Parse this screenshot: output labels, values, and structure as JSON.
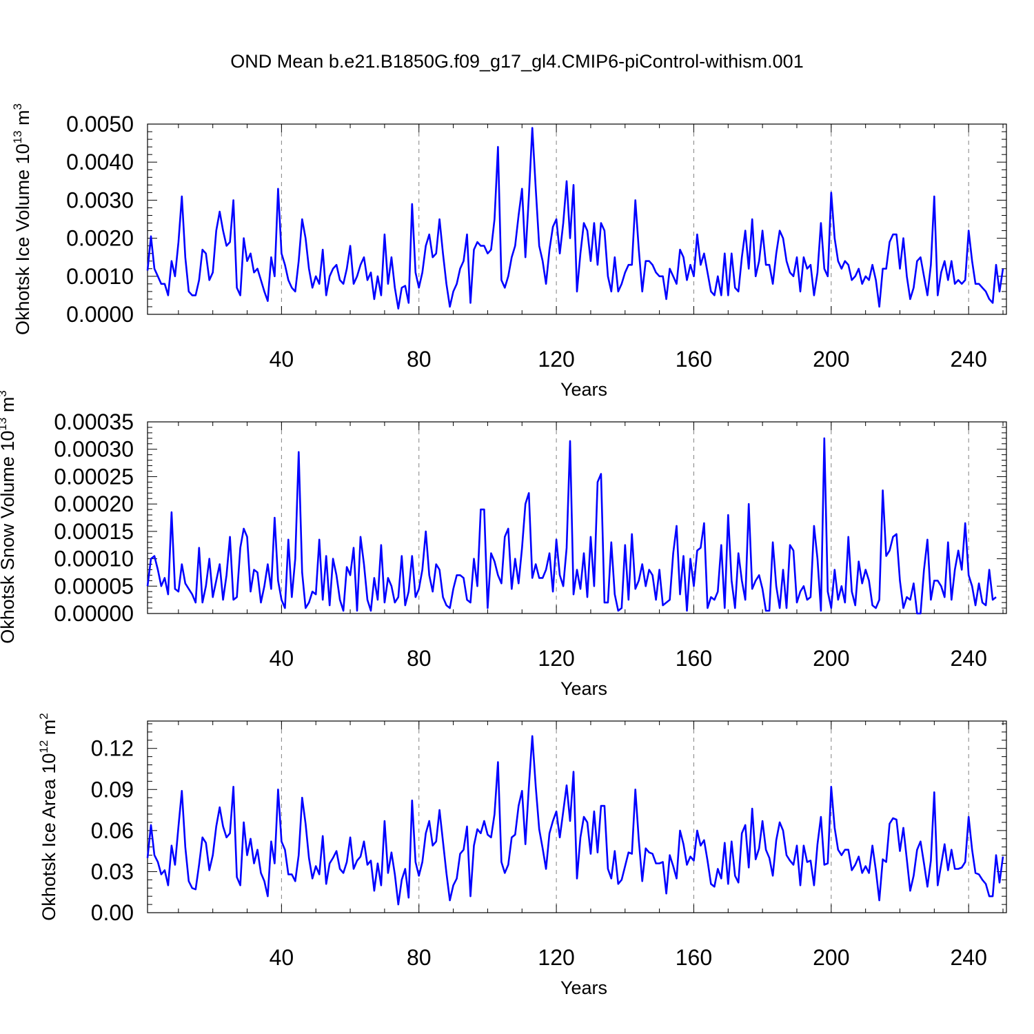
{
  "figure": {
    "title": "OND Mean b.e21.B1850G.f09_g17_gl4.CMIP6-piControl-withism.001",
    "line_color": "#0000ff"
  },
  "chart_data": [
    {
      "type": "line",
      "name": "ice-volume",
      "ylabel_main": "Okhotsk Ice Volume 10",
      "ylabel_exp": "13",
      "ylabel_unit": " m",
      "ylabel_unit_exp": "3",
      "xlabel": "Years",
      "xlim": [
        1,
        251
      ],
      "ylim": [
        0,
        0.005
      ],
      "xticks": [
        40,
        80,
        120,
        160,
        200,
        240
      ],
      "xtick_labels": [
        "40",
        "80",
        "120",
        "160",
        "200",
        "240"
      ],
      "yticks": [
        0,
        0.001,
        0.002,
        0.003,
        0.004,
        0.005
      ],
      "ytick_labels": [
        "0.0000",
        "0.0010",
        "0.0020",
        "0.0030",
        "0.0040",
        "0.0050"
      ],
      "grid": "x-dashed",
      "x_start": 1,
      "values": [
        0.00115,
        0.00205,
        0.0012,
        0.001,
        0.0008,
        0.0008,
        0.0005,
        0.0014,
        0.001,
        0.0019,
        0.0031,
        0.0015,
        0.0006,
        0.0005,
        0.0005,
        0.0009,
        0.0017,
        0.0016,
        0.0009,
        0.0011,
        0.0022,
        0.0027,
        0.0022,
        0.0018,
        0.0019,
        0.003,
        0.0007,
        0.0005,
        0.002,
        0.0014,
        0.0016,
        0.0011,
        0.0012,
        0.0009,
        0.0006,
        0.00035,
        0.0015,
        0.001,
        0.0033,
        0.0016,
        0.0013,
        0.0009,
        0.0007,
        0.0006,
        0.0014,
        0.0025,
        0.002,
        0.0012,
        0.0007,
        0.001,
        0.0008,
        0.0017,
        0.0005,
        0.001,
        0.0012,
        0.0013,
        0.0009,
        0.0008,
        0.0012,
        0.0018,
        0.0008,
        0.001,
        0.0013,
        0.0015,
        0.0009,
        0.0011,
        0.0004,
        0.001,
        0.0005,
        0.0021,
        0.0008,
        0.0015,
        0.0007,
        0.00015,
        0.0007,
        0.00075,
        0.0003,
        0.0029,
        0.0011,
        0.0007,
        0.0011,
        0.0018,
        0.0021,
        0.0015,
        0.0016,
        0.0025,
        0.0016,
        0.0008,
        0.0002,
        0.0006,
        0.0008,
        0.0012,
        0.0014,
        0.0021,
        0.0003,
        0.0017,
        0.0019,
        0.0018,
        0.0018,
        0.0016,
        0.0017,
        0.0025,
        0.0044,
        0.0009,
        0.0007,
        0.001,
        0.0015,
        0.0018,
        0.0026,
        0.0033,
        0.0015,
        0.0031,
        0.0049,
        0.0033,
        0.0018,
        0.0014,
        0.0008,
        0.0017,
        0.0023,
        0.0025,
        0.0016,
        0.0024,
        0.0035,
        0.002,
        0.0034,
        0.0006,
        0.0016,
        0.0024,
        0.0022,
        0.0014,
        0.0024,
        0.0013,
        0.0024,
        0.0022,
        0.001,
        0.0006,
        0.0015,
        0.0006,
        0.0008,
        0.0011,
        0.0013,
        0.0013,
        0.003,
        0.0017,
        0.0006,
        0.0014,
        0.0014,
        0.0013,
        0.0011,
        0.001,
        0.001,
        0.0004,
        0.0012,
        0.001,
        0.0008,
        0.0017,
        0.0015,
        0.0009,
        0.0013,
        0.001,
        0.0021,
        0.0013,
        0.0016,
        0.0011,
        0.0006,
        0.0005,
        0.001,
        0.0005,
        0.0016,
        0.0005,
        0.0016,
        0.0007,
        0.0006,
        0.0015,
        0.0022,
        0.0012,
        0.0025,
        0.001,
        0.0014,
        0.0022,
        0.0013,
        0.0013,
        0.0008,
        0.0016,
        0.0022,
        0.002,
        0.0014,
        0.0011,
        0.001,
        0.0015,
        0.0006,
        0.0015,
        0.0012,
        0.0013,
        0.0005,
        0.0011,
        0.0024,
        0.0012,
        0.001,
        0.0032,
        0.002,
        0.0014,
        0.0012,
        0.0014,
        0.0013,
        0.0009,
        0.001,
        0.0012,
        0.0008,
        0.001,
        0.0009,
        0.0013,
        0.0009,
        0.0002,
        0.0012,
        0.0012,
        0.0019,
        0.0021,
        0.0021,
        0.0012,
        0.002,
        0.001,
        0.0004,
        0.0007,
        0.0014,
        0.0015,
        0.001,
        0.0005,
        0.0013,
        0.0031,
        0.0005,
        0.0011,
        0.0014,
        0.0009,
        0.0014,
        0.0008,
        0.0009,
        0.0008,
        0.0009,
        0.0022,
        0.0014,
        0.0008,
        0.0008,
        0.0007,
        0.0006,
        0.0004,
        0.0003,
        0.0013,
        0.0006,
        0.0012
      ]
    },
    {
      "type": "line",
      "name": "snow-volume",
      "ylabel_main": "Okhotsk Snow Volume 10",
      "ylabel_exp": "13",
      "ylabel_unit": " m",
      "ylabel_unit_exp": "3",
      "xlabel": "Years",
      "xlim": [
        1,
        251
      ],
      "ylim": [
        0,
        0.00035
      ],
      "xticks": [
        40,
        80,
        120,
        160,
        200,
        240
      ],
      "xtick_labels": [
        "40",
        "80",
        "120",
        "160",
        "200",
        "240"
      ],
      "yticks": [
        0,
        5e-05,
        0.0001,
        0.00015,
        0.0002,
        0.00025,
        0.0003,
        0.00035
      ],
      "ytick_labels": [
        "0.00000",
        "0.00005",
        "0.00010",
        "0.00015",
        "0.00020",
        "0.00025",
        "0.00030",
        "0.00035"
      ],
      "grid": "x-dashed",
      "x_start": 1,
      "values": [
        5e-05,
        0.0001,
        0.000105,
        8e-05,
        5e-05,
        6.5e-05,
        3.5e-05,
        0.000185,
        4.5e-05,
        4e-05,
        9e-05,
        5.5e-05,
        4.5e-05,
        3.5e-05,
        2e-05,
        0.00012,
        2e-05,
        5e-05,
        0.0001,
        3e-05,
        6e-05,
        9e-05,
        2.5e-05,
        7e-05,
        0.00014,
        2.5e-05,
        3e-05,
        0.00012,
        0.000155,
        0.00014,
        4e-05,
        8e-05,
        7.5e-05,
        2e-05,
        5e-05,
        9e-05,
        4.5e-05,
        0.000175,
        6e-05,
        2.5e-05,
        1e-05,
        0.000135,
        3e-05,
        0.0001,
        0.000295,
        7.5e-05,
        1e-05,
        2e-05,
        4e-05,
        3.5e-05,
        0.000135,
        2.5e-05,
        0.000105,
        1.5e-05,
        0.0001,
        7e-05,
        2.5e-05,
        5e-06,
        8.5e-05,
        7e-05,
        0.00012,
        5e-06,
        0.00014,
        9e-05,
        2.5e-05,
        5e-06,
        6.5e-05,
        2.5e-05,
        0.000125,
        2e-05,
        6.5e-05,
        5e-05,
        2e-05,
        3e-05,
        0.000105,
        1.5e-05,
        4e-05,
        0.000105,
        3e-05,
        4.5e-05,
        8e-05,
        0.00015,
        7e-05,
        4e-05,
        9e-05,
        8e-05,
        3e-05,
        1.5e-05,
        1e-05,
        4.5e-05,
        7e-05,
        7e-05,
        6.5e-05,
        2.5e-05,
        2e-05,
        0.0001,
        5e-05,
        0.00019,
        0.00019,
        1e-05,
        0.00011,
        9.5e-05,
        7e-05,
        5.5e-05,
        0.00014,
        0.000155,
        4.5e-05,
        0.0001,
        5.5e-05,
        0.00012,
        0.0002,
        0.00022,
        6.5e-05,
        9e-05,
        6.5e-05,
        6.5e-05,
        8e-05,
        0.00011,
        4e-05,
        0.000135,
        7e-05,
        5e-05,
        0.00012,
        0.000315,
        3.5e-05,
        8e-05,
        4.5e-05,
        0.00011,
        3e-05,
        0.00014,
        5e-05,
        0.00024,
        0.000255,
        2e-05,
        2e-05,
        0.00013,
        3.5e-05,
        5e-06,
        1e-05,
        0.000125,
        2.5e-05,
        0.000145,
        4.5e-05,
        6e-05,
        9e-05,
        5e-05,
        8e-05,
        7e-05,
        2.5e-05,
        8e-05,
        1.5e-05,
        2e-05,
        2.5e-05,
        0.00011,
        0.00016,
        3.5e-05,
        0.000105,
        5e-06,
        0.0001,
        5e-05,
        0.000115,
        0.00012,
        0.000165,
        1e-05,
        3e-05,
        2.5e-05,
        4e-05,
        0.000125,
        1e-05,
        0.00018,
        6e-05,
        1e-05,
        0.00011,
        6e-05,
        2.5e-05,
        0.0002,
        4.5e-05,
        6e-05,
        7e-05,
        4.5e-05,
        5e-06,
        5e-06,
        0.00013,
        5e-05,
        1e-05,
        8e-05,
        1e-05,
        0.000125,
        0.000115,
        2e-05,
        4e-05,
        5e-05,
        2.5e-05,
        3e-05,
        0.00016,
        0.0001,
        5e-06,
        0.00032,
        4e-05,
        1e-05,
        8e-05,
        2.5e-05,
        5e-05,
        2e-05,
        0.00014,
        4e-05,
        1.5e-05,
        9.5e-05,
        5.5e-05,
        8e-05,
        6e-05,
        1.5e-05,
        1e-05,
        2.5e-05,
        0.000225,
        0.000105,
        0.000115,
        0.00014,
        0.000145,
        6e-05,
        1e-05,
        3e-05,
        2.5e-05,
        5.5e-05,
        0,
        0,
        8e-05,
        0.000135,
        2.5e-05,
        6e-05,
        6e-05,
        5e-05,
        3e-05,
        0.00013,
        2.5e-05,
        8e-05,
        0.000115,
        8e-05,
        0.000165,
        7e-05,
        5e-05,
        1.5e-05,
        5.5e-05,
        2e-05,
        1.5e-05,
        8e-05,
        2.5e-05,
        3e-05
      ]
    },
    {
      "type": "line",
      "name": "ice-area",
      "ylabel_main": "Okhotsk Ice Area 10",
      "ylabel_exp": "12",
      "ylabel_unit": " m",
      "ylabel_unit_exp": "2",
      "xlabel": "Years",
      "xlim": [
        1,
        251
      ],
      "ylim": [
        0,
        0.14
      ],
      "xticks": [
        40,
        80,
        120,
        160,
        200,
        240
      ],
      "xtick_labels": [
        "40",
        "80",
        "120",
        "160",
        "200",
        "240"
      ],
      "yticks": [
        0,
        0.03,
        0.06,
        0.09,
        0.12
      ],
      "ytick_labels": [
        "0.00",
        "0.03",
        "0.06",
        "0.09",
        "0.12"
      ],
      "grid": "x-dashed",
      "x_start": 1,
      "values": [
        0.04,
        0.064,
        0.042,
        0.037,
        0.028,
        0.031,
        0.02,
        0.049,
        0.035,
        0.063,
        0.089,
        0.048,
        0.023,
        0.018,
        0.017,
        0.035,
        0.055,
        0.051,
        0.031,
        0.042,
        0.063,
        0.077,
        0.063,
        0.055,
        0.058,
        0.092,
        0.026,
        0.02,
        0.066,
        0.042,
        0.054,
        0.036,
        0.046,
        0.029,
        0.023,
        0.012,
        0.052,
        0.036,
        0.09,
        0.052,
        0.046,
        0.028,
        0.028,
        0.023,
        0.042,
        0.084,
        0.065,
        0.04,
        0.025,
        0.034,
        0.028,
        0.056,
        0.021,
        0.036,
        0.04,
        0.045,
        0.032,
        0.029,
        0.037,
        0.055,
        0.032,
        0.038,
        0.041,
        0.052,
        0.035,
        0.038,
        0.016,
        0.036,
        0.02,
        0.067,
        0.029,
        0.044,
        0.028,
        0.006,
        0.024,
        0.032,
        0.011,
        0.082,
        0.037,
        0.027,
        0.037,
        0.058,
        0.067,
        0.049,
        0.052,
        0.075,
        0.052,
        0.029,
        0.009,
        0.02,
        0.025,
        0.043,
        0.046,
        0.063,
        0.012,
        0.049,
        0.061,
        0.058,
        0.067,
        0.057,
        0.055,
        0.072,
        0.11,
        0.037,
        0.029,
        0.035,
        0.055,
        0.057,
        0.078,
        0.089,
        0.05,
        0.092,
        0.129,
        0.092,
        0.061,
        0.047,
        0.032,
        0.058,
        0.067,
        0.074,
        0.055,
        0.074,
        0.093,
        0.067,
        0.103,
        0.025,
        0.055,
        0.07,
        0.066,
        0.043,
        0.074,
        0.044,
        0.078,
        0.078,
        0.032,
        0.025,
        0.045,
        0.021,
        0.024,
        0.034,
        0.044,
        0.043,
        0.09,
        0.053,
        0.023,
        0.047,
        0.044,
        0.043,
        0.036,
        0.036,
        0.037,
        0.014,
        0.042,
        0.034,
        0.025,
        0.06,
        0.05,
        0.035,
        0.041,
        0.038,
        0.06,
        0.049,
        0.053,
        0.038,
        0.021,
        0.019,
        0.032,
        0.025,
        0.051,
        0.021,
        0.052,
        0.027,
        0.022,
        0.058,
        0.064,
        0.033,
        0.076,
        0.039,
        0.047,
        0.067,
        0.046,
        0.04,
        0.027,
        0.053,
        0.066,
        0.06,
        0.042,
        0.038,
        0.035,
        0.049,
        0.02,
        0.049,
        0.037,
        0.038,
        0.02,
        0.05,
        0.07,
        0.035,
        0.036,
        0.092,
        0.062,
        0.046,
        0.042,
        0.046,
        0.046,
        0.031,
        0.035,
        0.041,
        0.029,
        0.034,
        0.029,
        0.049,
        0.031,
        0.009,
        0.039,
        0.037,
        0.065,
        0.069,
        0.068,
        0.045,
        0.062,
        0.039,
        0.016,
        0.027,
        0.046,
        0.052,
        0.036,
        0.019,
        0.038,
        0.088,
        0.02,
        0.035,
        0.05,
        0.031,
        0.046,
        0.032,
        0.032,
        0.033,
        0.037,
        0.07,
        0.046,
        0.029,
        0.028,
        0.024,
        0.021,
        0.012,
        0.012,
        0.042,
        0.022,
        0.041
      ]
    }
  ]
}
